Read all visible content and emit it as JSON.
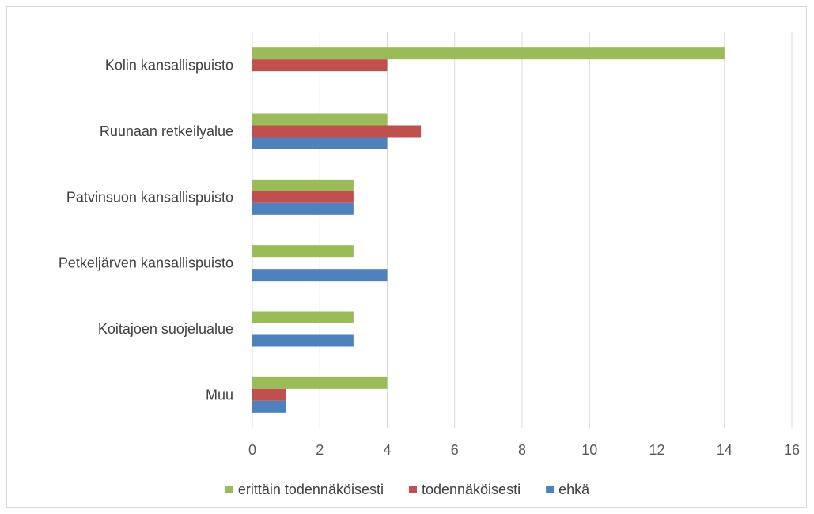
{
  "chart_data": {
    "type": "bar",
    "orientation": "horizontal",
    "categories": [
      "Kolin kansallispuisto",
      "Ruunaan retkeilyalue",
      "Patvinsuon kansallispuisto",
      "Petkeljärven kansallispuisto",
      "Koitajoen suojelualue",
      "Muu"
    ],
    "series": [
      {
        "name": "erittäin todennäköisesti",
        "color": "#9bbb59",
        "values": [
          14,
          4,
          3,
          3,
          3,
          4
        ]
      },
      {
        "name": "todennäköisesti",
        "color": "#c0504d",
        "values": [
          4,
          5,
          3,
          0,
          0,
          1
        ]
      },
      {
        "name": "ehkä",
        "color": "#4f81bd",
        "values": [
          0,
          4,
          3,
          4,
          3,
          1
        ]
      }
    ],
    "xlim": [
      0,
      16
    ],
    "xticks": [
      "0",
      "2",
      "4",
      "6",
      "8",
      "10",
      "12",
      "14",
      "16"
    ],
    "grid": true,
    "legend_position": "bottom"
  }
}
